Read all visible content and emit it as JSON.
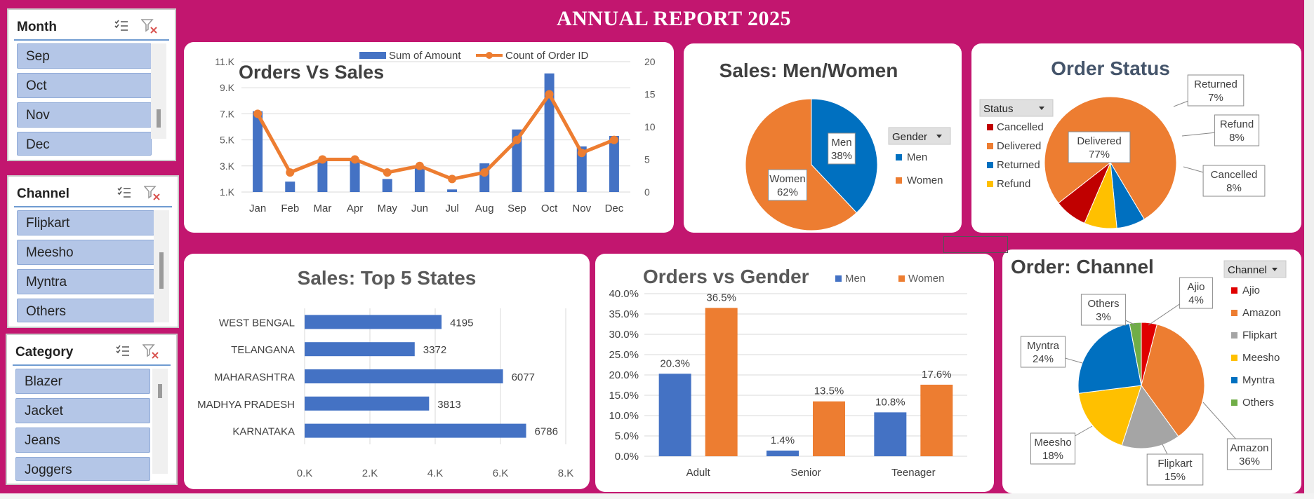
{
  "report_title": "ANNUAL REPORT 2025",
  "colors": {
    "background": "#c2166f",
    "blue": "#4472c4",
    "orange": "#ed7d31",
    "men_blue": "#0070c0",
    "red": "#c00000",
    "yellow": "#ffc000",
    "gray": "#a5a5a5",
    "green": "#70ad47",
    "ajio_red": "#e00000",
    "text_dark": "#44546a"
  },
  "icons": {
    "multiselect": "multi-select-icon",
    "clear_filter": "clear-filter-icon",
    "dropdown": "dropdown-arrow-icon"
  },
  "slicers": {
    "month": {
      "title": "Month",
      "items": [
        "Sep",
        "Oct",
        "Nov",
        "Dec"
      ]
    },
    "channel": {
      "title": "Channel",
      "items": [
        "Flipkart",
        "Meesho",
        "Myntra",
        "Others"
      ]
    },
    "category": {
      "title": "Category",
      "items": [
        "Blazer",
        "Jacket",
        "Jeans",
        "Joggers"
      ]
    }
  },
  "chart_data": [
    {
      "id": "orders_vs_sales",
      "type": "bar",
      "title": "Orders Vs Sales",
      "categories": [
        "Jan",
        "Feb",
        "Mar",
        "Apr",
        "May",
        "Jun",
        "Jul",
        "Aug",
        "Sep",
        "Oct",
        "Nov",
        "Dec"
      ],
      "series": [
        {
          "name": "Sum of Amount",
          "type": "bar",
          "axis": "left",
          "values": [
            7300,
            1900,
            3600,
            3600,
            2100,
            3100,
            1300,
            3300,
            5900,
            10200,
            4600,
            5400
          ]
        },
        {
          "name": "Count of Order ID",
          "type": "line",
          "axis": "right",
          "values": [
            12,
            3,
            5,
            5,
            3,
            4,
            2,
            3,
            8,
            15,
            6,
            8
          ]
        }
      ],
      "y_left_ticks": [
        "1.K",
        "3.K",
        "5.K",
        "7.K",
        "9.K",
        "11.K"
      ],
      "y_left_tick_values": [
        1100,
        3100,
        5100,
        7100,
        9100,
        11100
      ],
      "y_left_range": [
        1100,
        11100
      ],
      "y_right_ticks": [
        "0",
        "5",
        "10",
        "15",
        "20"
      ],
      "y_right_range": [
        0,
        20
      ],
      "grid": true,
      "legend": "top"
    },
    {
      "id": "sales_men_women",
      "type": "pie",
      "title": "Sales: Men/Women",
      "legend_title": "Gender",
      "legend": "right",
      "slices": [
        {
          "name": "Men",
          "value": 38,
          "label": "Men\n38%"
        },
        {
          "name": "Women",
          "value": 62,
          "label": "Women\n62%"
        }
      ]
    },
    {
      "id": "order_status",
      "type": "pie",
      "title": "Order Status",
      "legend_title": "Status",
      "legend": "left",
      "legend_order": [
        "Cancelled",
        "Delivered",
        "Returned",
        "Refund"
      ],
      "slices": [
        {
          "name": "Delivered",
          "value": 77,
          "label": "Delivered\n77%"
        },
        {
          "name": "Returned",
          "value": 7,
          "label": "Returned\n7%"
        },
        {
          "name": "Refund",
          "value": 8,
          "label": "Refund\n8%"
        },
        {
          "name": "Cancelled",
          "value": 8,
          "label": "Cancelled\n8%"
        }
      ]
    },
    {
      "id": "top5_states",
      "type": "bar",
      "orientation": "horizontal",
      "title": "Sales: Top 5 States",
      "categories": [
        "WEST BENGAL",
        "TELANGANA",
        "MAHARASHTRA",
        "MADHYA PRADESH",
        "KARNATAKA"
      ],
      "values": [
        4195,
        3372,
        6077,
        3813,
        6786
      ],
      "xlim": [
        0,
        8000
      ],
      "x_ticks": [
        "0.K",
        "2.K",
        "4.K",
        "6.K",
        "8.K"
      ],
      "grid": true
    },
    {
      "id": "orders_vs_gender",
      "type": "bar",
      "title": "Orders vs Gender",
      "categories": [
        "Adult",
        "Senior",
        "Teenager"
      ],
      "series": [
        {
          "name": "Men",
          "values": [
            20.3,
            1.4,
            10.8
          ],
          "labels": [
            "20.3%",
            "1.4%",
            "10.8%"
          ]
        },
        {
          "name": "Women",
          "values": [
            36.5,
            13.5,
            17.6
          ],
          "labels": [
            "36.5%",
            "13.5%",
            "17.6%"
          ]
        }
      ],
      "ylim": [
        0,
        40
      ],
      "y_ticks": [
        "0.0%",
        "5.0%",
        "10.0%",
        "15.0%",
        "20.0%",
        "25.0%",
        "30.0%",
        "35.0%",
        "40.0%"
      ],
      "legend": "top",
      "grid": true
    },
    {
      "id": "order_channel",
      "type": "pie",
      "title": "Order: Channel",
      "legend_title": "Channel",
      "legend": "right",
      "legend_order": [
        "Ajio",
        "Amazon",
        "Flipkart",
        "Meesho",
        "Myntra",
        "Others"
      ],
      "slices": [
        {
          "name": "Ajio",
          "value": 4,
          "label": "Ajio\n4%"
        },
        {
          "name": "Amazon",
          "value": 36,
          "label": "Amazon\n36%"
        },
        {
          "name": "Flipkart",
          "value": 15,
          "label": "Flipkart\n15%"
        },
        {
          "name": "Meesho",
          "value": 18,
          "label": "Meesho\n18%"
        },
        {
          "name": "Myntra",
          "value": 24,
          "label": "Myntra\n24%"
        },
        {
          "name": "Others",
          "value": 3,
          "label": "Others\n3%"
        }
      ]
    }
  ]
}
